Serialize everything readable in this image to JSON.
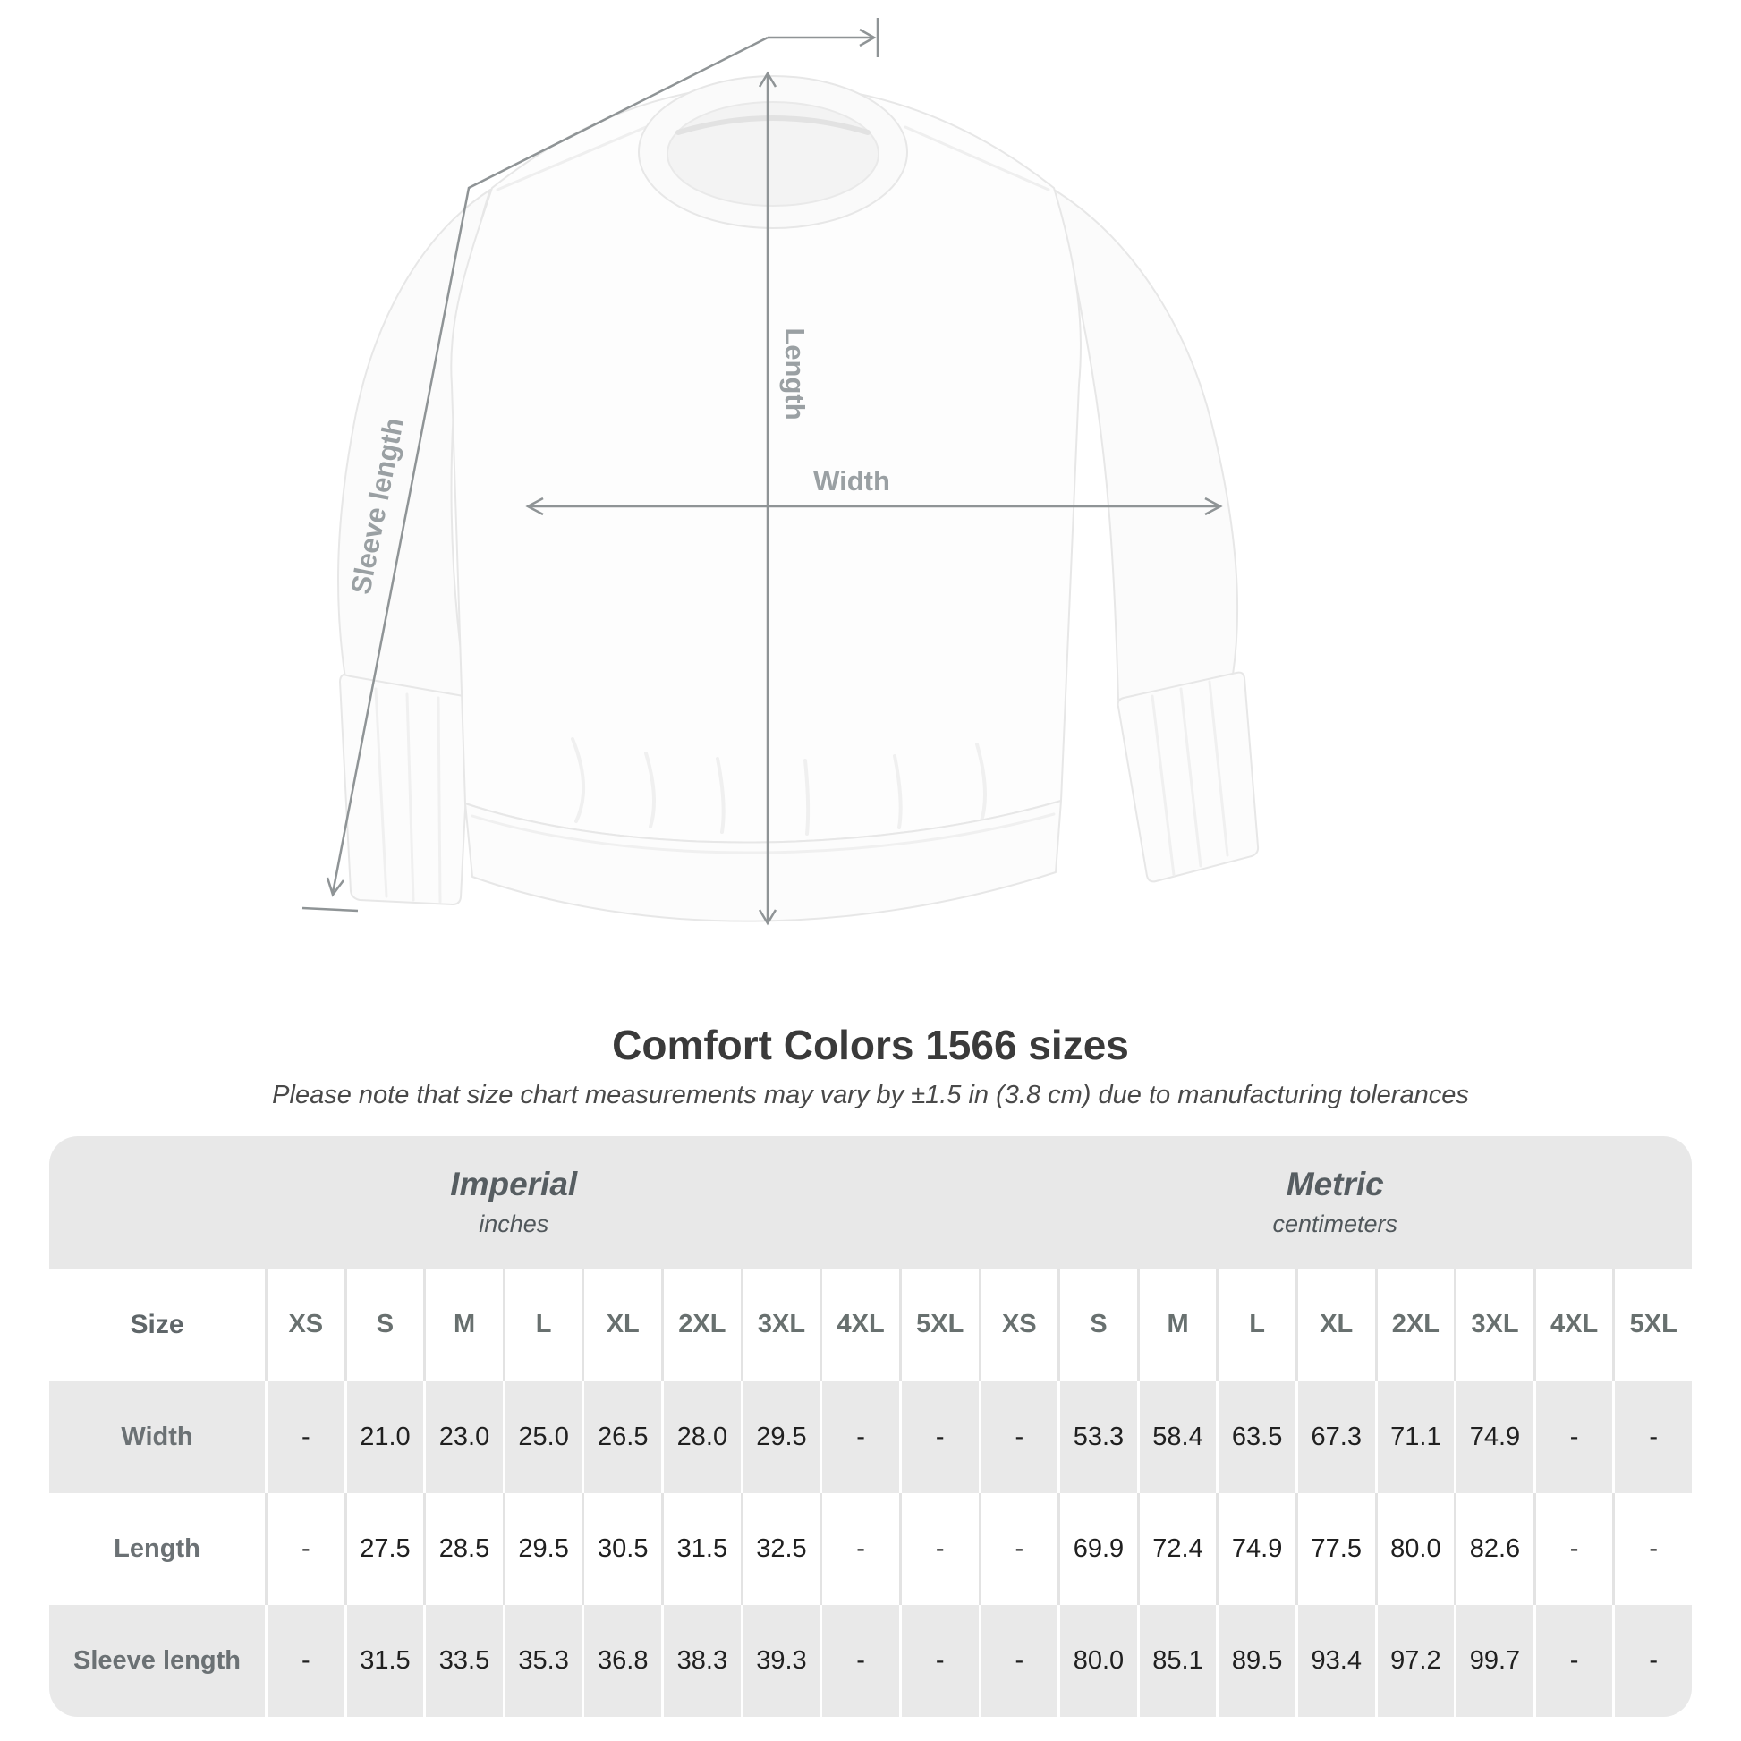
{
  "title": "Comfort Colors 1566 sizes",
  "subtitle": "Please note that size chart measurements may vary by ±1.5 in (3.8 cm) due to manufacturing tolerances",
  "figure": {
    "length_label": "Length",
    "width_label": "Width",
    "sleeve_label": "Sleeve length"
  },
  "chart_data": {
    "type": "table",
    "title": "Comfort Colors 1566 sizes",
    "unit_groups": [
      {
        "label": "Imperial",
        "sublabel": "inches"
      },
      {
        "label": "Metric",
        "sublabel": "centimeters"
      }
    ],
    "size_header": "Size",
    "sizes": [
      "XS",
      "S",
      "M",
      "L",
      "XL",
      "2XL",
      "3XL",
      "4XL",
      "5XL"
    ],
    "rows": [
      {
        "label": "Width",
        "imperial": [
          "-",
          "21.0",
          "23.0",
          "25.0",
          "26.5",
          "28.0",
          "29.5",
          "-",
          "-"
        ],
        "metric": [
          "-",
          "53.3",
          "58.4",
          "63.5",
          "67.3",
          "71.1",
          "74.9",
          "-",
          "-"
        ]
      },
      {
        "label": "Length",
        "imperial": [
          "-",
          "27.5",
          "28.5",
          "29.5",
          "30.5",
          "31.5",
          "32.5",
          "-",
          "-"
        ],
        "metric": [
          "-",
          "69.9",
          "72.4",
          "74.9",
          "77.5",
          "80.0",
          "82.6",
          "-",
          "-"
        ]
      },
      {
        "label": "Sleeve length",
        "imperial": [
          "-",
          "31.5",
          "33.5",
          "35.3",
          "36.8",
          "38.3",
          "39.3",
          "-",
          "-"
        ],
        "metric": [
          "-",
          "80.0",
          "85.1",
          "89.5",
          "93.4",
          "97.2",
          "99.7",
          "-",
          "-"
        ]
      }
    ]
  },
  "colors": {
    "table_band_gray": "#e8e8e8",
    "row_alt_gray": "#e9e9e9",
    "annotation_gray": "#8f9496",
    "value_text": "#202020",
    "title_text": "#3a3a3a"
  }
}
